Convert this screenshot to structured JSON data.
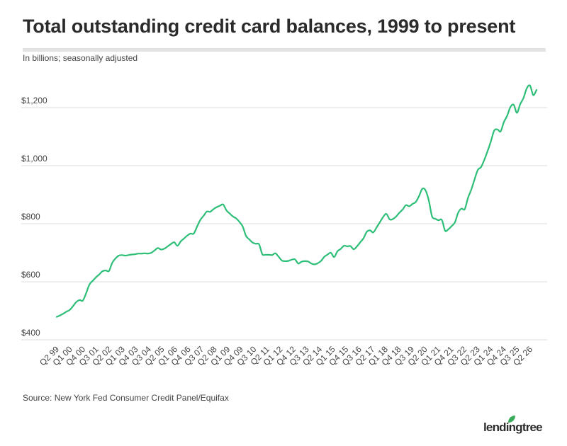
{
  "header": {
    "title": "Total outstanding credit card balances, 1999 to present",
    "subtitle": "In billions; seasonally adjusted"
  },
  "footer": {
    "source": "Source: New York Fed Consumer Credit Panel/Equifax",
    "logo_text": "lendingtree"
  },
  "colors": {
    "line": "#2dbe77",
    "grid": "#dddddd",
    "rule": "#e3e3e3",
    "logo_leaf": "#3aaa5c"
  },
  "chart_data": {
    "type": "line",
    "title": "Total outstanding credit card balances, 1999 to present",
    "subtitle": "In billions; seasonally adjusted",
    "xlabel": "",
    "ylabel": "",
    "ylim": [
      400,
      1300
    ],
    "grid": true,
    "y_ticks": [
      400,
      600,
      800,
      1000,
      1200
    ],
    "y_tick_labels": [
      "$400",
      "$600",
      "$800",
      "$1,000",
      "$1,200"
    ],
    "x_tick_labels": [
      "Q2 99",
      "Q1 00",
      "Q4 00",
      "Q3 01",
      "Q2 02",
      "Q1 03",
      "Q4 03",
      "Q3 04",
      "Q2 05",
      "Q1 06",
      "Q4 06",
      "Q3 07",
      "Q2 08",
      "Q1 09",
      "Q4 09",
      "Q3 10",
      "Q2 11",
      "Q1 12",
      "Q4 12",
      "Q3 13",
      "Q2 14",
      "Q1 15",
      "Q4 15",
      "Q3 16",
      "Q2 17",
      "Q1 18",
      "Q4 18",
      "Q3 19",
      "Q2 20",
      "Q1 21",
      "Q4 21",
      "Q3 22",
      "Q2 23",
      "Q1 24",
      "Q4 24",
      "Q3 25",
      "Q2 26"
    ],
    "series": [
      {
        "values": [
          479,
          484,
          490,
          497,
          503,
          516,
          530,
          537,
          535,
          560,
          590,
          603,
          615,
          625,
          636,
          639,
          637,
          665,
          680,
          690,
          692,
          690,
          692,
          694,
          695,
          697,
          697,
          698,
          697,
          700,
          708,
          716,
          711,
          714,
          722,
          730,
          736,
          724,
          739,
          749,
          759,
          766,
          766,
          790,
          813,
          827,
          842,
          841,
          850,
          857,
          862,
          866,
          846,
          835,
          825,
          818,
          806,
          790,
          758,
          746,
          735,
          731,
          729,
          695,
          693,
          693,
          692,
          698,
          686,
          673,
          671,
          672,
          676,
          677,
          663,
          669,
          671,
          670,
          663,
          660,
          664,
          672,
          686,
          694,
          700,
          685,
          705,
          713,
          724,
          722,
          723,
          712,
          722,
          736,
          750,
          772,
          777,
          770,
          787,
          805,
          823,
          834,
          815,
          816,
          825,
          838,
          849,
          864,
          860,
          868,
          875,
          895,
          920,
          915,
          880,
          825,
          817,
          812,
          813,
          776,
          781,
          792,
          805,
          838,
          852,
          850,
          889,
          917,
          952,
          985,
          995,
          1020,
          1050,
          1083,
          1120,
          1125,
          1118,
          1150,
          1172,
          1202,
          1210,
          1182,
          1212,
          1233,
          1266,
          1276,
          1243,
          1261
        ]
      }
    ]
  }
}
